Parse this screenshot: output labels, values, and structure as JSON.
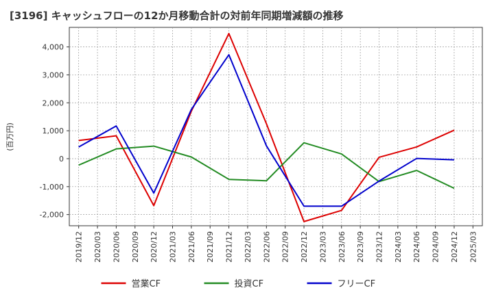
{
  "chart_data": {
    "type": "line",
    "title": "[3196]  キャッシュフローの12か月移動合計の対前年同期増減額の推移",
    "ylabel": "(百万円)",
    "xlabel": "",
    "categories": [
      "2019/12",
      "2020/03",
      "2020/06",
      "2020/09",
      "2020/12",
      "2021/03",
      "2021/06",
      "2021/09",
      "2021/12",
      "2022/03",
      "2022/06",
      "2022/09",
      "2022/12",
      "2023/03",
      "2023/06",
      "2023/09",
      "2023/12",
      "2024/03",
      "2024/06",
      "2024/09",
      "2024/12",
      "2025/03"
    ],
    "ylim": [
      -2400,
      4700
    ],
    "yticks": [
      -2000,
      -1000,
      0,
      1000,
      2000,
      3000,
      4000
    ],
    "ytick_labels": [
      "-2,000",
      "-1,000",
      "0",
      "1,000",
      "2,000",
      "3,000",
      "4,000"
    ],
    "grid": true,
    "legend_position": "bottom",
    "series": [
      {
        "name": "営業CF",
        "color": "#dd0000",
        "values": [
          650,
          null,
          820,
          null,
          -1680,
          null,
          1700,
          null,
          4480,
          null,
          1250,
          null,
          -2250,
          null,
          -1850,
          null,
          50,
          null,
          420,
          null,
          1020,
          null
        ]
      },
      {
        "name": "投資CF",
        "color": "#228b22",
        "values": [
          -230,
          null,
          350,
          null,
          450,
          null,
          60,
          null,
          -740,
          null,
          -790,
          null,
          570,
          null,
          170,
          null,
          -820,
          null,
          -420,
          null,
          -1060,
          null
        ]
      },
      {
        "name": "フリーCF",
        "color": "#0000cc",
        "values": [
          420,
          null,
          1170,
          null,
          -1230,
          null,
          1760,
          null,
          3720,
          null,
          460,
          null,
          -1700,
          null,
          -1700,
          null,
          -800,
          null,
          10,
          null,
          -40,
          null
        ]
      }
    ]
  }
}
